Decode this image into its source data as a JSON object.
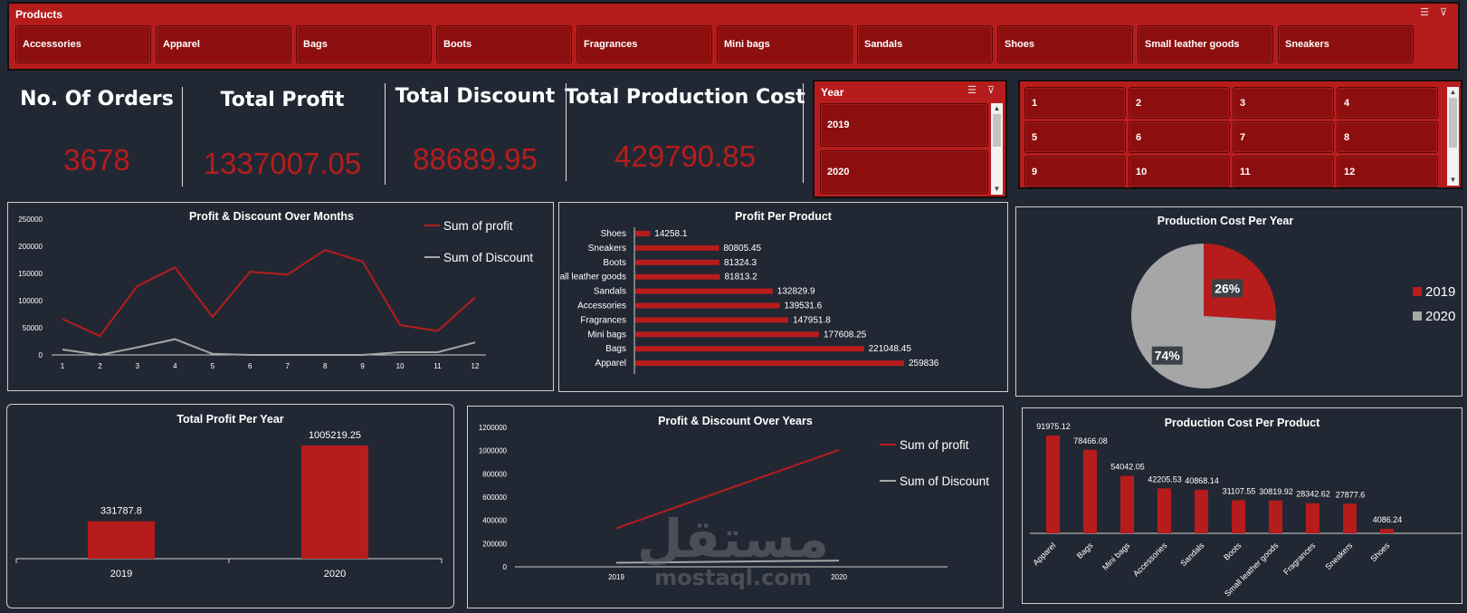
{
  "products_slicer": {
    "title": "Products",
    "items": [
      "Accessories",
      "Apparel",
      "Bags",
      "Boots",
      "Fragrances",
      "Mini bags",
      "Sandals",
      "Shoes",
      "Small leather goods",
      "Sneakers"
    ]
  },
  "kpis": [
    {
      "label": "No. Of Orders",
      "value": "3678"
    },
    {
      "label": "Total Profit",
      "value": "1337007.05"
    },
    {
      "label": "Total Discount",
      "value": "88689.95"
    },
    {
      "label": "Total Production Cost",
      "value": "429790.85"
    }
  ],
  "year_slicer": {
    "title": "Year",
    "items": [
      "2019",
      "2020"
    ]
  },
  "month_slicer": {
    "items": [
      "1",
      "2",
      "3",
      "4",
      "5",
      "6",
      "7",
      "8",
      "9",
      "10",
      "11",
      "12"
    ]
  },
  "colors": {
    "accent": "#b71c1c",
    "tile": "#8d0e0e",
    "grey": "#a6a6a6",
    "background": "#222833"
  },
  "watermark": {
    "arabic": "مستقل",
    "latin": "mostaql.com"
  },
  "chart_data": [
    {
      "id": "profit-discount-months",
      "type": "line",
      "title": "Profit & Discount Over Months",
      "x": [
        1,
        2,
        3,
        4,
        5,
        6,
        7,
        8,
        9,
        10,
        11,
        12
      ],
      "ylim": [
        0,
        250000
      ],
      "yticks": [
        0,
        50000,
        100000,
        150000,
        200000,
        250000
      ],
      "legend": "top-right",
      "series": [
        {
          "name": "Sum of profit",
          "color": "#b71c1c",
          "values": [
            66000,
            35000,
            127000,
            161000,
            70000,
            153000,
            148000,
            193000,
            172000,
            55000,
            44000,
            106000
          ]
        },
        {
          "name": "Sum of Discount",
          "color": "#a6a6a6",
          "values": [
            10000,
            0,
            14000,
            29000,
            2000,
            0,
            0,
            0,
            0,
            5000,
            5000,
            23000
          ]
        }
      ]
    },
    {
      "id": "profit-per-product",
      "type": "bar",
      "orientation": "horizontal",
      "title": "Profit Per Product",
      "categories": [
        "Shoes",
        "Sneakers",
        "Boots",
        "Small leather goods",
        "Sandals",
        "Accessories",
        "Fragrances",
        "Mini bags",
        "Bags",
        "Apparel"
      ],
      "values": [
        14258.1,
        80805.45,
        81324.3,
        81813.2,
        132829.9,
        139531.6,
        147951.8,
        177608.25,
        221048.45,
        259836
      ],
      "labels": [
        "14258.1",
        "80805.45",
        "81324.3",
        "81813.2",
        "132829.9",
        "139531.6",
        "147951.8",
        "177608.25",
        "221048.45",
        "259836"
      ]
    },
    {
      "id": "production-cost-per-year",
      "type": "pie",
      "title": "Production Cost Per Year",
      "categories": [
        "2019",
        "2020"
      ],
      "values": [
        26,
        74
      ],
      "labels": [
        "26%",
        "74%"
      ],
      "colors": [
        "#b71c1c",
        "#a6a6a6"
      ],
      "legend": "right"
    },
    {
      "id": "total-profit-per-year",
      "type": "bar",
      "title": "Total Profit Per Year",
      "categories": [
        "2019",
        "2020"
      ],
      "values": [
        331787.8,
        1005219.25
      ],
      "labels": [
        "331787.8",
        "1005219.25"
      ]
    },
    {
      "id": "profit-discount-years",
      "type": "line",
      "title": "Profit & Discount Over Years",
      "x": [
        "2019",
        "2020"
      ],
      "ylim": [
        0,
        1200000
      ],
      "yticks": [
        0,
        200000,
        400000,
        600000,
        800000,
        1000000,
        1200000
      ],
      "legend": "right",
      "series": [
        {
          "name": "Sum of profit",
          "color": "#b71c1c",
          "values": [
            331787.8,
            1005219.25
          ]
        },
        {
          "name": "Sum of Discount",
          "color": "#a6a6a6",
          "values": [
            35000,
            54000
          ]
        }
      ]
    },
    {
      "id": "production-cost-per-product",
      "type": "bar",
      "title": "Production Cost Per Product",
      "categories": [
        "Apparel",
        "Bags",
        "Mini bags",
        "Accessories",
        "Sandals",
        "Boots",
        "Small leather goods",
        "Fragrances",
        "Sneakers",
        "Shoes"
      ],
      "values": [
        91975.12,
        78466.08,
        54042.05,
        42205.53,
        40868.14,
        31107.55,
        30819.92,
        28342.62,
        27877.6,
        4086.24
      ],
      "labels": [
        "91975.12",
        "78466.08",
        "54042.05",
        "42205.53",
        "40868.14",
        "31107.55",
        "30819.92",
        "28342.62",
        "27877.6",
        "4086.24"
      ]
    }
  ]
}
